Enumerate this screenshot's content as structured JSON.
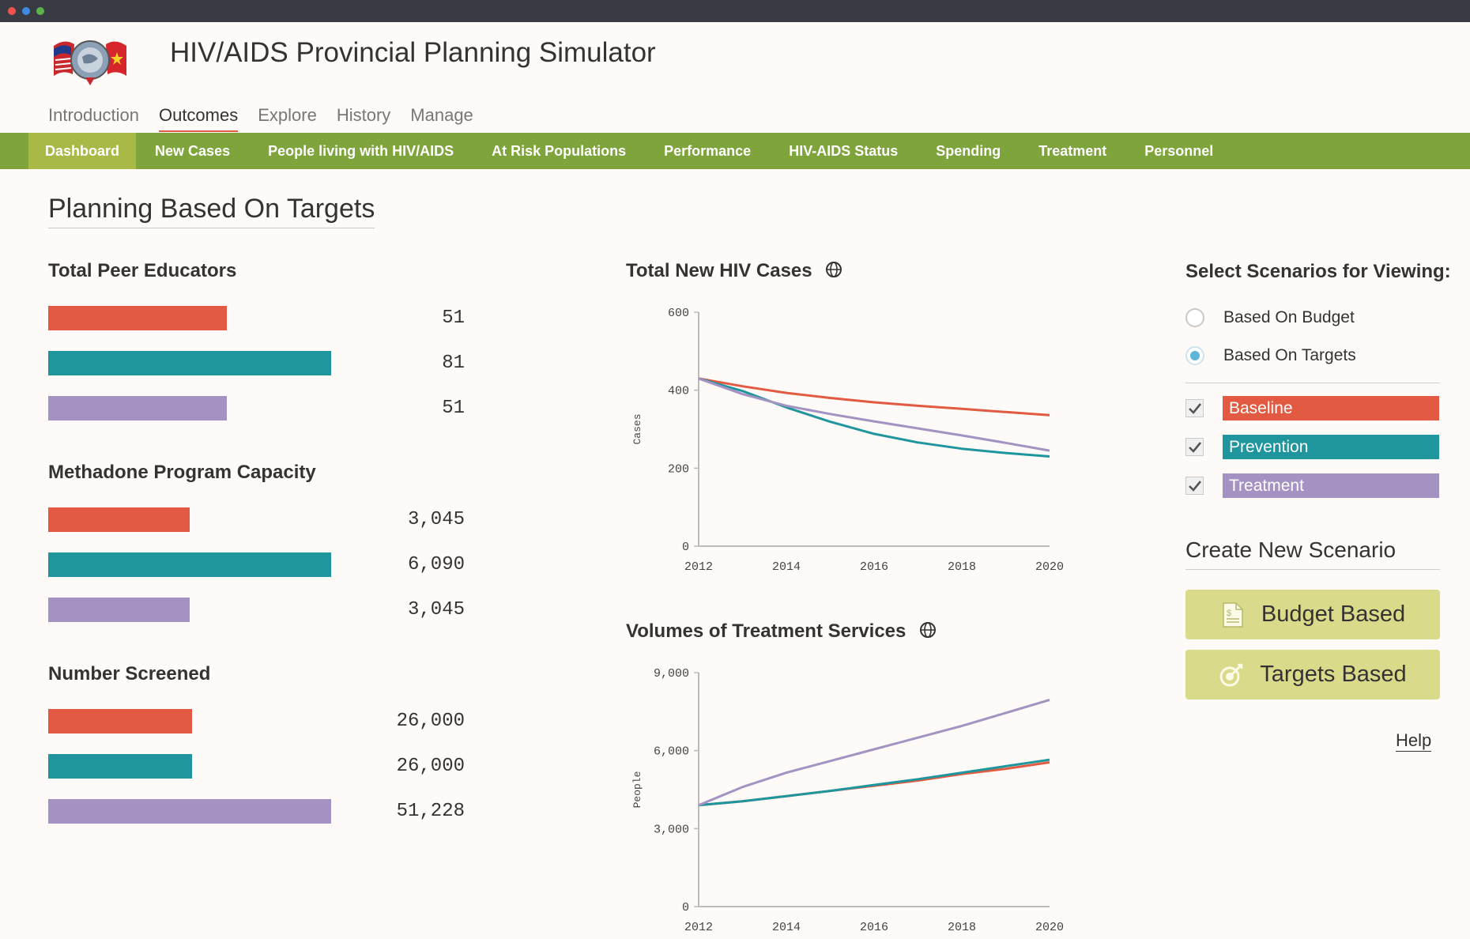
{
  "app": {
    "title": "HIV/AIDS Provincial Planning Simulator"
  },
  "colors": {
    "baseline": "#e25a41",
    "prevention": "#1f969e",
    "treatment": "#a493c2",
    "nav_green": "#7fa43c",
    "nav_active": "#a9b847",
    "button": "#dadb8a"
  },
  "top_nav": {
    "items": [
      "Introduction",
      "Outcomes",
      "Explore",
      "History",
      "Manage"
    ],
    "active": "Outcomes"
  },
  "sub_nav": {
    "items": [
      "Dashboard",
      "New Cases",
      "People living with HIV/AIDS",
      "At Risk Populations",
      "Performance",
      "HIV-AIDS Status",
      "Spending",
      "Treatment",
      "Personnel"
    ],
    "active": "Dashboard"
  },
  "page": {
    "heading": "Planning Based On Targets"
  },
  "metrics": [
    {
      "title": "Total Peer Educators",
      "values": [
        "51",
        "81",
        "51"
      ],
      "fractions": [
        0.63,
        1.0,
        0.63
      ]
    },
    {
      "title": "Methadone Program Capacity",
      "values": [
        "3,045",
        "6,090",
        "3,045"
      ],
      "fractions": [
        0.5,
        1.0,
        0.5
      ]
    },
    {
      "title": "Number Screened",
      "values": [
        "26,000",
        "26,000",
        "51,228"
      ],
      "fractions": [
        0.508,
        0.508,
        1.0
      ]
    }
  ],
  "charts": {
    "new_cases_title": "Total New HIV Cases",
    "treatment_title": "Volumes of Treatment Services",
    "globe_icon": "globe-icon"
  },
  "chart_data": [
    {
      "type": "line",
      "title": "Total New HIV Cases",
      "ylabel": "Cases",
      "xlabel": "",
      "ylim": [
        0,
        600
      ],
      "yticks": [
        "0",
        "200",
        "400",
        "600"
      ],
      "x": [
        2012,
        2013,
        2014,
        2015,
        2016,
        2017,
        2018,
        2019,
        2020
      ],
      "xticks": [
        "2012",
        "2014",
        "2016",
        "2018",
        "2020"
      ],
      "series": [
        {
          "name": "Baseline",
          "values": [
            430,
            410,
            393,
            380,
            369,
            360,
            352,
            344,
            336
          ]
        },
        {
          "name": "Prevention",
          "values": [
            430,
            398,
            356,
            319,
            288,
            266,
            250,
            239,
            230
          ]
        },
        {
          "name": "Treatment",
          "values": [
            430,
            390,
            360,
            339,
            320,
            302,
            284,
            265,
            245
          ]
        }
      ]
    },
    {
      "type": "line",
      "title": "Volumes of Treatment Services",
      "ylabel": "People",
      "xlabel": "",
      "ylim": [
        0,
        9000
      ],
      "yticks": [
        "0",
        "3,000",
        "6,000",
        "9,000"
      ],
      "x": [
        2012,
        2013,
        2014,
        2015,
        2016,
        2017,
        2018,
        2019,
        2020
      ],
      "xticks": [
        "2012",
        "2014",
        "2016",
        "2018",
        "2020"
      ],
      "series": [
        {
          "name": "Baseline",
          "values": [
            3900,
            4050,
            4250,
            4450,
            4650,
            4850,
            5100,
            5300,
            5550
          ]
        },
        {
          "name": "Prevention",
          "values": [
            3900,
            4050,
            4250,
            4450,
            4680,
            4900,
            5150,
            5400,
            5650
          ]
        },
        {
          "name": "Treatment",
          "values": [
            3900,
            4600,
            5150,
            5600,
            6050,
            6500,
            6950,
            7450,
            7950
          ]
        }
      ]
    }
  ],
  "scenarios_panel": {
    "title": "Select Scenarios for Viewing:",
    "radios": [
      {
        "label": "Based On Budget",
        "checked": false
      },
      {
        "label": "Based On Targets",
        "checked": true
      }
    ],
    "scenarios": [
      {
        "label": "Baseline",
        "checked": true
      },
      {
        "label": "Prevention",
        "checked": true
      },
      {
        "label": "Treatment",
        "checked": true
      }
    ]
  },
  "create": {
    "title": "Create New Scenario",
    "budget_label": "Budget Based",
    "targets_label": "Targets Based",
    "budget_icon": "document-icon",
    "targets_icon": "target-icon"
  },
  "help": {
    "label": "Help"
  }
}
